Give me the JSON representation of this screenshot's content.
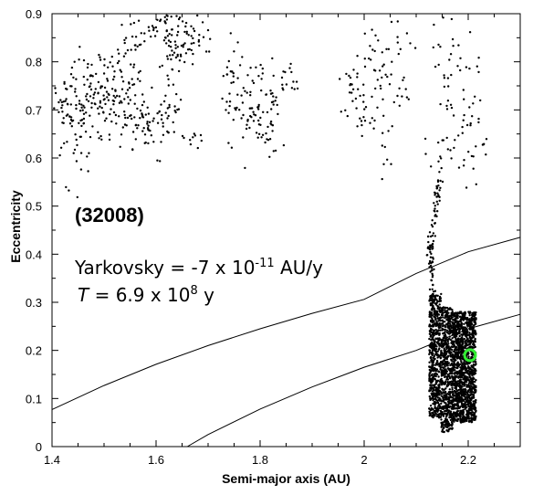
{
  "chart_data": {
    "type": "scatter",
    "title": "",
    "xlabel": "Semi-major axis (AU)",
    "ylabel": "Eccentricity",
    "xlim": [
      1.4,
      2.3
    ],
    "ylim": [
      0,
      0.9
    ],
    "xticks": [
      "1.4",
      "1.6",
      "1.8",
      "2",
      "2.2"
    ],
    "yticks": [
      "0",
      "0.1",
      "0.2",
      "0.3",
      "0.4",
      "0.5",
      "0.6",
      "0.7",
      "0.8",
      "0.9"
    ],
    "grid": false,
    "annotations": {
      "id": "(32008)",
      "yark_prefix": "Yarkovsky = -7 x 10",
      "yark_exp": "-11",
      "yark_suffix": " AU/y",
      "t_symbol": "T",
      "t_prefix": " = 6.9 x 10",
      "t_exp": "8",
      "t_suffix": " y"
    },
    "current_position": {
      "a": 2.2,
      "e": 0.19,
      "color": "#33ee33"
    },
    "boundary_curves": [
      {
        "points": [
          [
            1.4,
            0.077
          ],
          [
            1.5,
            0.127
          ],
          [
            1.6,
            0.171
          ],
          [
            1.7,
            0.21
          ],
          [
            1.8,
            0.245
          ],
          [
            1.9,
            0.277
          ],
          [
            2.0,
            0.306
          ],
          [
            2.1,
            0.36
          ],
          [
            2.2,
            0.405
          ],
          [
            2.3,
            0.435
          ]
        ]
      },
      {
        "points": [
          [
            1.66,
            0.0
          ],
          [
            1.7,
            0.025
          ],
          [
            1.8,
            0.078
          ],
          [
            1.9,
            0.124
          ],
          [
            2.0,
            0.165
          ],
          [
            2.1,
            0.2
          ],
          [
            2.2,
            0.245
          ],
          [
            2.3,
            0.275
          ]
        ]
      }
    ],
    "clusters": [
      {
        "ac": 1.42,
        "ec": 0.72,
        "sa": 0.01,
        "se": 0.03,
        "n": 25
      },
      {
        "ac": 1.45,
        "ec": 0.69,
        "sa": 0.02,
        "se": 0.06,
        "n": 70
      },
      {
        "ac": 1.48,
        "ec": 0.74,
        "sa": 0.02,
        "se": 0.04,
        "n": 40
      },
      {
        "ac": 1.51,
        "ec": 0.72,
        "sa": 0.02,
        "se": 0.04,
        "n": 50
      },
      {
        "ac": 1.54,
        "ec": 0.77,
        "sa": 0.015,
        "se": 0.04,
        "n": 40
      },
      {
        "ac": 1.56,
        "ec": 0.84,
        "sa": 0.01,
        "se": 0.03,
        "n": 15
      },
      {
        "ac": 1.57,
        "ec": 0.69,
        "sa": 0.02,
        "se": 0.02,
        "n": 25
      },
      {
        "ac": 1.59,
        "ec": 0.65,
        "sa": 0.02,
        "se": 0.03,
        "n": 30
      },
      {
        "ac": 1.61,
        "ec": 0.87,
        "sa": 0.02,
        "se": 0.02,
        "n": 35
      },
      {
        "ac": 1.63,
        "ec": 0.81,
        "sa": 0.01,
        "se": 0.04,
        "n": 30
      },
      {
        "ac": 1.62,
        "ec": 0.7,
        "sa": 0.015,
        "se": 0.03,
        "n": 25
      },
      {
        "ac": 1.67,
        "ec": 0.86,
        "sa": 0.02,
        "se": 0.03,
        "n": 50
      },
      {
        "ac": 1.67,
        "ec": 0.64,
        "sa": 0.02,
        "se": 0.01,
        "n": 10
      },
      {
        "ac": 1.75,
        "ec": 0.74,
        "sa": 0.015,
        "se": 0.05,
        "n": 35
      },
      {
        "ac": 1.79,
        "ec": 0.71,
        "sa": 0.02,
        "se": 0.05,
        "n": 60
      },
      {
        "ac": 1.82,
        "ec": 0.66,
        "sa": 0.01,
        "se": 0.03,
        "n": 20
      },
      {
        "ac": 1.85,
        "ec": 0.76,
        "sa": 0.015,
        "se": 0.02,
        "n": 15
      },
      {
        "ac": 1.97,
        "ec": 0.75,
        "sa": 0.01,
        "se": 0.04,
        "n": 15
      },
      {
        "ac": 2.03,
        "ec": 0.73,
        "sa": 0.025,
        "se": 0.07,
        "n": 70
      },
      {
        "ac": 2.07,
        "ec": 0.8,
        "sa": 0.015,
        "se": 0.05,
        "n": 15
      },
      {
        "ac": 2.14,
        "ec": 0.6,
        "sa": 0.015,
        "se": 0.04,
        "n": 10
      },
      {
        "ac": 2.17,
        "ec": 0.72,
        "sa": 0.02,
        "se": 0.08,
        "n": 50
      },
      {
        "ac": 2.21,
        "ec": 0.7,
        "sa": 0.015,
        "se": 0.07,
        "n": 25
      }
    ],
    "strands": [
      {
        "a0": 2.148,
        "e0": 0.58,
        "a1": 2.128,
        "e1": 0.43,
        "sa": 0.004,
        "se": 0.01,
        "n": 45
      },
      {
        "a0": 2.128,
        "e0": 0.43,
        "a1": 2.132,
        "e1": 0.31,
        "sa": 0.003,
        "se": 0.01,
        "n": 45
      }
    ],
    "dense_bands": [
      {
        "a0": 2.125,
        "a1": 2.148,
        "e0": 0.06,
        "e1": 0.32,
        "n": 550
      },
      {
        "a0": 2.148,
        "a1": 2.17,
        "e0": 0.03,
        "e1": 0.29,
        "n": 550
      },
      {
        "a0": 2.17,
        "a1": 2.215,
        "e0": 0.05,
        "e1": 0.28,
        "n": 1400
      }
    ]
  }
}
